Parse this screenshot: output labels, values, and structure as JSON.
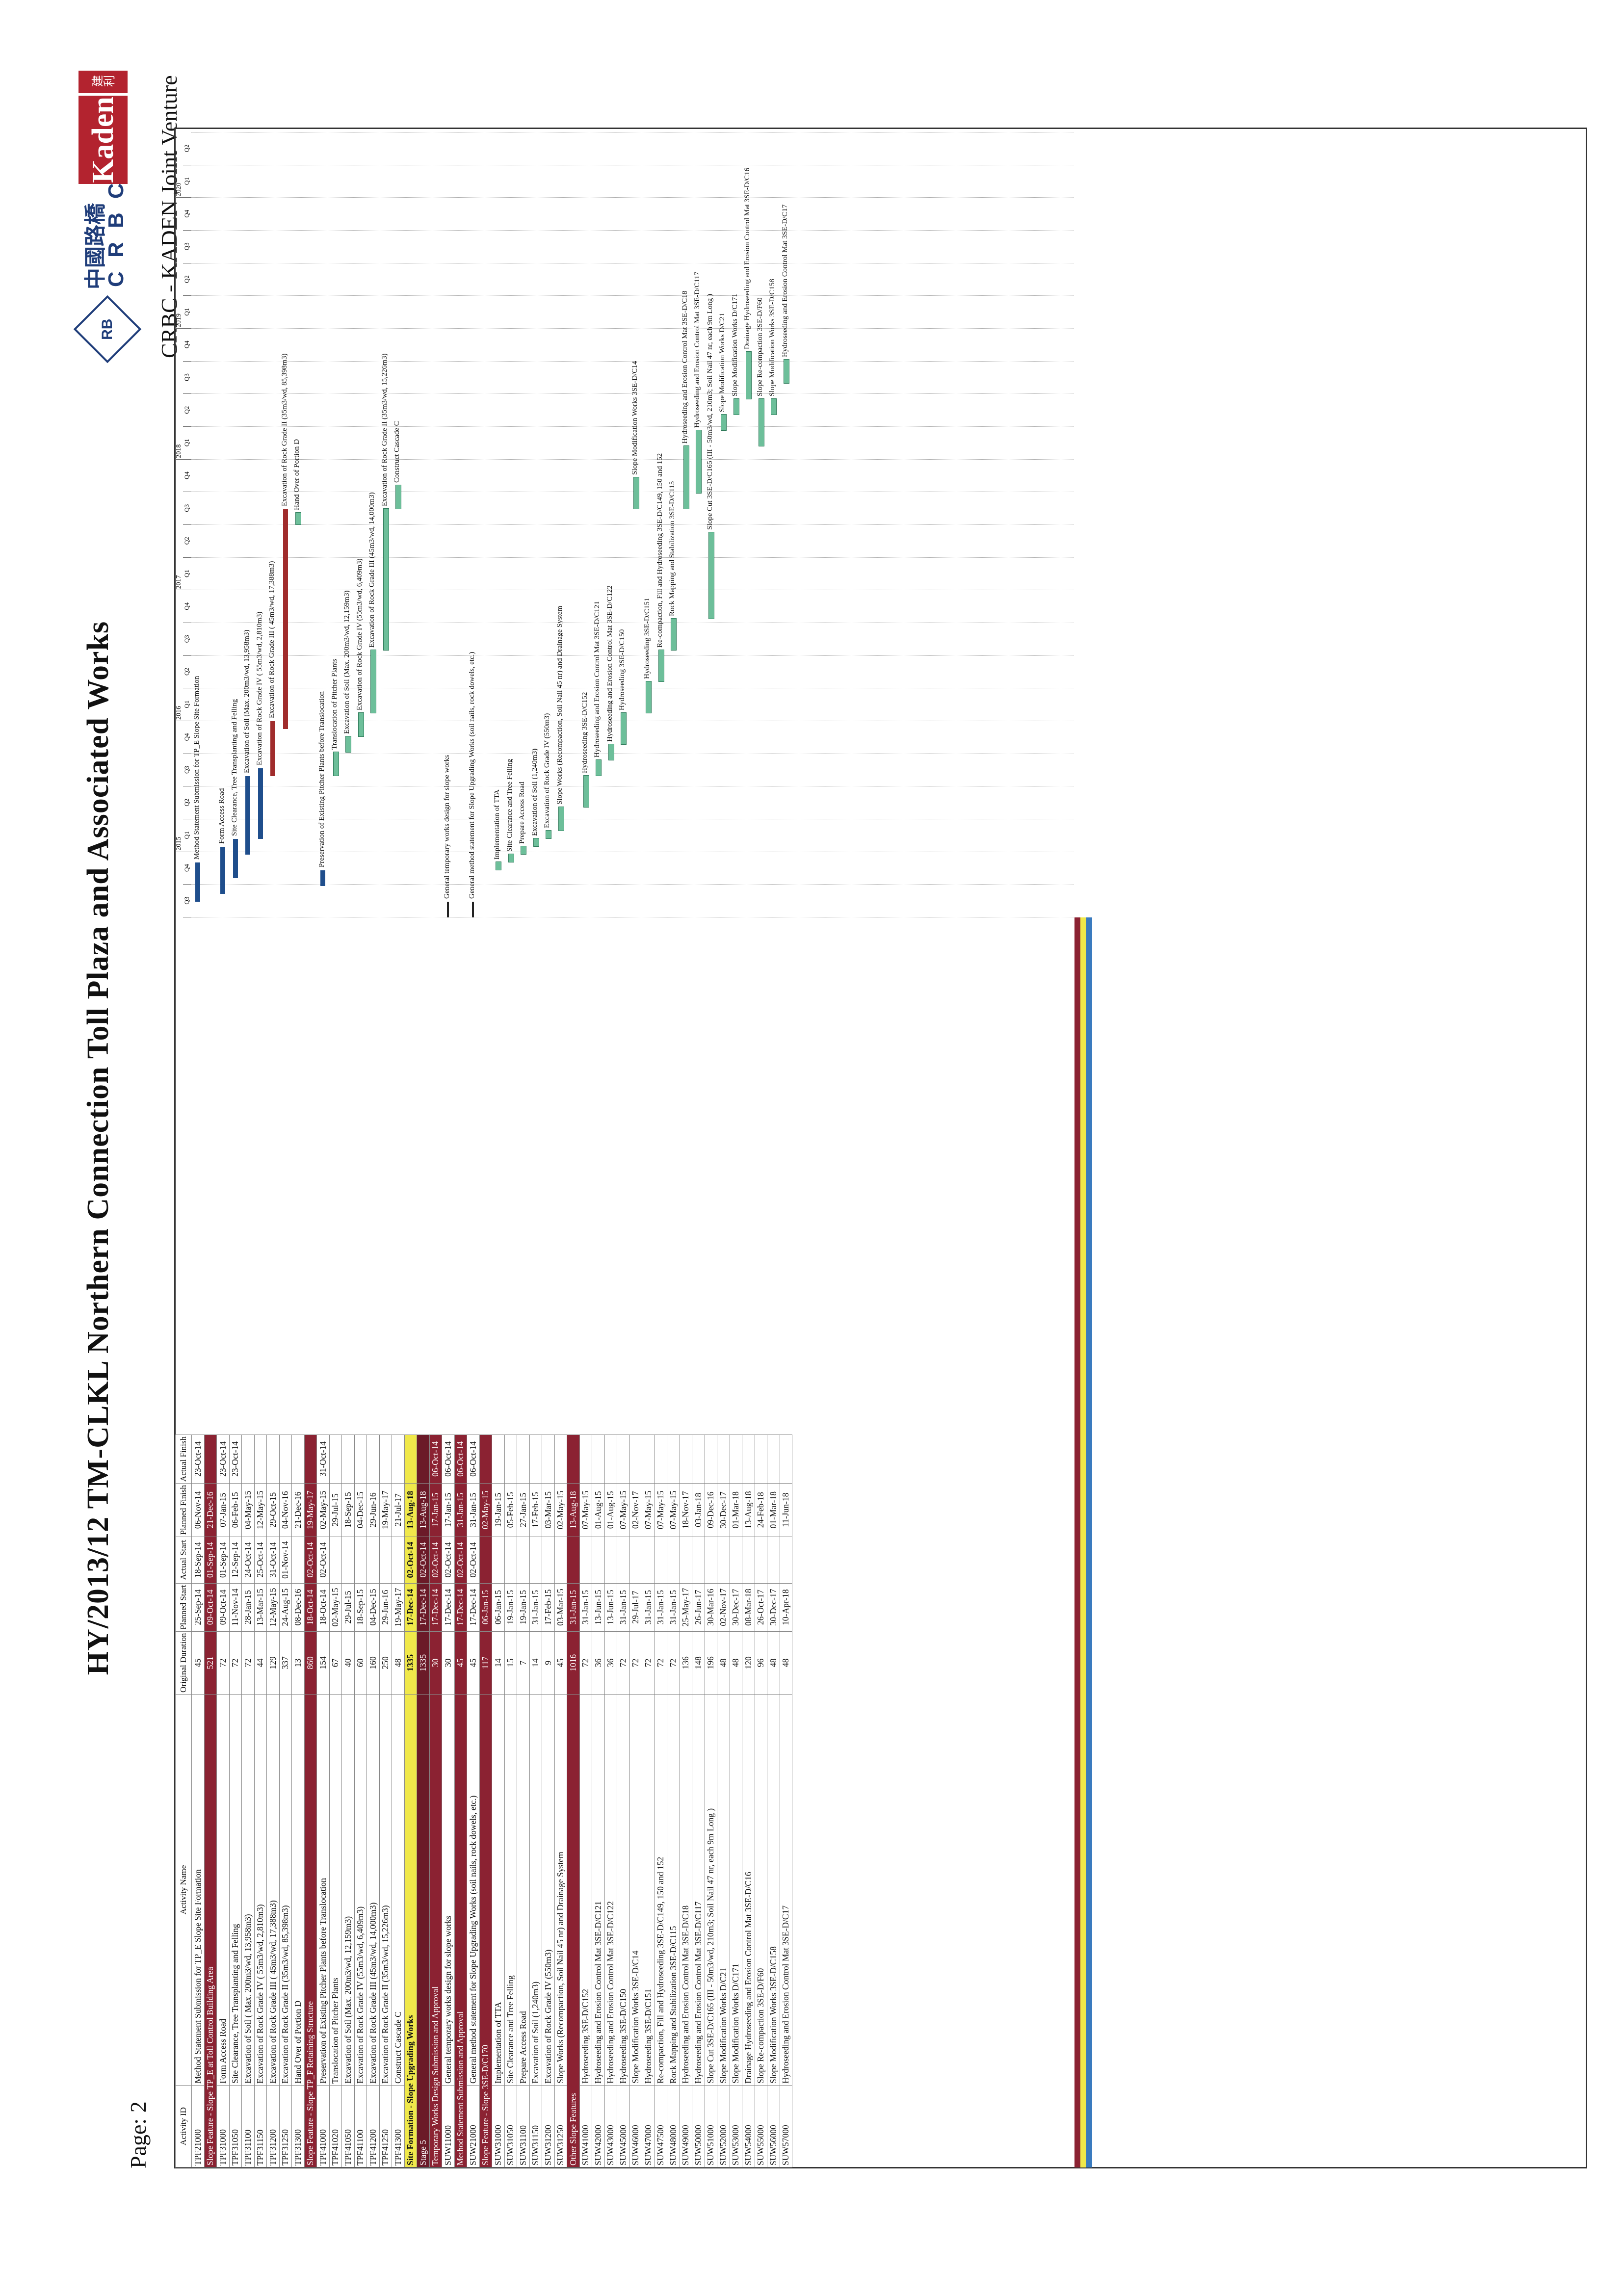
{
  "header": {
    "title": "HY/2013/12 TM-CLKL Northern Connection Toll Plaza and Associated Works",
    "page_label": "Page: 2",
    "company_cn": "中國路橋",
    "company_en": "C R B C",
    "logo_initials": "RB",
    "kaden": "Kaden",
    "kaden_cn": "建利",
    "joint_venture": "CRBC - KADEN Joint Venture"
  },
  "columns": [
    "Activity ID",
    "Activity Name",
    "Original Duration",
    "Planned Start",
    "Actual Start",
    "Planned Finish",
    "Actual Finish"
  ],
  "timeline": {
    "years": [
      "2015",
      "2016",
      "2017",
      "2018",
      "2019",
      "2020"
    ],
    "quarters": [
      "Q3",
      "Q4",
      "Q1",
      "Q2",
      "Q3",
      "Q4",
      "Q1",
      "Q2",
      "Q3",
      "Q4",
      "Q1",
      "Q2",
      "Q3",
      "Q4",
      "Q1",
      "Q2",
      "Q3",
      "Q4",
      "Q1",
      "Q2",
      "Q3",
      "Q4",
      "Q1",
      "Q2"
    ]
  },
  "rows": [
    {
      "type": "row",
      "id": "TPF21000",
      "name": "Method Statement Submission for TP_E Slope Site Formation",
      "dur": "45",
      "ps": "25-Sep-14",
      "as": "18-Sep-14",
      "pf": "06-Nov-14",
      "af": "23-Oct-14",
      "bar": {
        "c": "bl",
        "s": 0.02,
        "e": 0.07,
        "label": "Method Statement Submission for TP_E Slope Site Formation"
      }
    },
    {
      "type": "s1",
      "name": "Slope Feature - Slope TP_E at Toll Control Building Area",
      "dur": "521",
      "ps": "09-Oct-14",
      "as": "01-Sep-14",
      "pf": "21-Dec-16"
    },
    {
      "type": "row",
      "id": "TPF31000",
      "name": "Form Access Road",
      "dur": "72",
      "ps": "09-Oct-14",
      "as": "01-Sep-14",
      "pf": "07-Jan-15",
      "af": "23-Oct-14",
      "bar": {
        "c": "bl",
        "s": 0.03,
        "e": 0.09,
        "label": "Form Access Road"
      }
    },
    {
      "type": "row",
      "id": "TPF31050",
      "name": "Site Clearance, Tree Transplanting and Felling",
      "dur": "72",
      "ps": "11-Nov-14",
      "as": "12-Sep-14",
      "pf": "06-Feb-15",
      "af": "23-Oct-14",
      "bar": {
        "c": "bl",
        "s": 0.05,
        "e": 0.1,
        "label": "Site Clearance, Tree Transplanting and Felling"
      }
    },
    {
      "type": "row",
      "id": "TPF31100",
      "name": "Excavation of Soil ( Max. 200m3/wd, 13,958m3)",
      "dur": "72",
      "ps": "28-Jan-15",
      "as": "24-Oct-14",
      "pf": "04-May-15",
      "bar": {
        "c": "bl",
        "s": 0.08,
        "e": 0.18,
        "label": "Excavation of Soil (Max. 200m3/wd, 13,958m3)"
      }
    },
    {
      "type": "row",
      "id": "TPF31150",
      "name": "Excavation of Rock Grade IV ( 55m3/wd, 2,810m3)",
      "dur": "44",
      "ps": "13-Mar-15",
      "as": "25-Oct-14",
      "pf": "12-May-15",
      "bar": {
        "c": "bl",
        "s": 0.1,
        "e": 0.19,
        "label": "Excavation of Rock Grade IV ( 55m3/wd, 2,810m3)"
      }
    },
    {
      "type": "row",
      "id": "TPF31200",
      "name": "Excavation of Rock Grade III ( 45m3/wd, 17,388m3)",
      "dur": "129",
      "ps": "12-May-15",
      "as": "31-Oct-14",
      "pf": "29-Oct-15",
      "bar": {
        "c": "rd",
        "s": 0.18,
        "e": 0.25,
        "label": "Excavation of Rock Grade III ( 45m3/wd, 17,388m3)"
      }
    },
    {
      "type": "row",
      "id": "TPF31250",
      "name": "Excavation of Rock Grade II (35m3/wd, 85,398m3)",
      "dur": "337",
      "ps": "24-Aug-15",
      "as": "01-Nov-14",
      "pf": "04-Nov-16",
      "bar": {
        "c": "rd",
        "s": 0.24,
        "e": 0.52,
        "label": "Excavation of Rock Grade II (35m3/wd, 85,398m3)"
      }
    },
    {
      "type": "row",
      "id": "TPF31300",
      "name": "Hand Over of Portion D",
      "dur": "13",
      "ps": "08-Dec-16",
      "as": "",
      "pf": "21-Dec-16",
      "bar": {
        "c": "gr",
        "s": 0.5,
        "e": 0.515,
        "label": "Hand Over of Portion D"
      }
    },
    {
      "type": "s1",
      "name": "Slope Feature - Slope TP_F Retaining Structure",
      "dur": "860",
      "ps": "18-Oct-14",
      "as": "02-Oct-14",
      "pf": "19-May-17"
    },
    {
      "type": "row",
      "id": "TPF41000",
      "name": "Preservation of Existing Pitcher Plants before Translocation",
      "dur": "154",
      "ps": "18-Oct-14",
      "as": "02-Oct-14",
      "pf": "02-May-15",
      "af": "31-Oct-14",
      "bar": {
        "c": "bl",
        "s": 0.04,
        "e": 0.06,
        "label": "Preservation of Existing Pitcher Plants before Translocation"
      }
    },
    {
      "type": "row",
      "id": "TPF41020",
      "name": "Translocation of Pitcher Plants",
      "dur": "67",
      "ps": "02-May-15",
      "as": "",
      "pf": "29-Jul-15",
      "bar": {
        "c": "gr",
        "s": 0.18,
        "e": 0.21,
        "label": "Translocation of Pitcher Plants"
      }
    },
    {
      "type": "row",
      "id": "TPF41050",
      "name": "Excavation of Soil (Max. 200m3/wd, 12,159m3)",
      "dur": "40",
      "ps": "29-Jul-15",
      "as": "",
      "pf": "18-Sep-15",
      "bar": {
        "c": "gr",
        "s": 0.21,
        "e": 0.23,
        "label": "Excavation of Soil (Max. 200m3/wd, 12,159m3)"
      }
    },
    {
      "type": "row",
      "id": "TPF41100",
      "name": "Excavation of Rock Grade IV (55m3/wd, 6,409m3)",
      "dur": "60",
      "ps": "18-Sep-15",
      "as": "",
      "pf": "04-Dec-15",
      "bar": {
        "c": "gr",
        "s": 0.23,
        "e": 0.26,
        "label": "Excavation of Rock Grade IV (55m3/wd, 6,409m3)"
      }
    },
    {
      "type": "row",
      "id": "TPF41200",
      "name": "Excavation of Rock Grade III (45m3/wd, 14,000m3)",
      "dur": "160",
      "ps": "04-Dec-15",
      "as": "",
      "pf": "29-Jun-16",
      "bar": {
        "c": "gr",
        "s": 0.26,
        "e": 0.34,
        "label": "Excavation of Rock Grade III (45m3/wd, 14,000m3)"
      }
    },
    {
      "type": "row",
      "id": "TPF41250",
      "name": "Excavation of Rock Grade II (35m3/wd, 15,226m3)",
      "dur": "250",
      "ps": "29-Jun-16",
      "as": "",
      "pf": "19-May-17",
      "bar": {
        "c": "gr",
        "s": 0.34,
        "e": 0.52,
        "label": "Excavation of Rock Grade II (35m3/wd, 15,226m3)"
      }
    },
    {
      "type": "row",
      "id": "TPF41300",
      "name": "Construct Cascade C",
      "dur": "48",
      "ps": "19-May-17",
      "as": "",
      "pf": "21-Jul-17",
      "bar": {
        "c": "gr",
        "s": 0.52,
        "e": 0.55,
        "label": "Construct Cascade C"
      }
    },
    {
      "type": "s3",
      "name": "Site Formation - Slope Upgrading Works",
      "dur": "1335",
      "ps": "17-Dec-14",
      "as": "02-Oct-14",
      "pf": "13-Aug-18"
    },
    {
      "type": "s2",
      "name": "Stage 5",
      "dur": "1335",
      "ps": "17-Dec-14",
      "as": "02-Oct-14",
      "pf": "13-Aug-18"
    },
    {
      "type": "s1",
      "name": "Temporary Works Design Submission and Approval",
      "dur": "30",
      "ps": "17-Dec-14",
      "as": "02-Oct-14",
      "pf": "17-Jan-15",
      "af": "06-Oct-14"
    },
    {
      "type": "row",
      "id": "SUW11000",
      "name": "General temporary works design for slope works",
      "dur": "30",
      "ps": "17-Dec-14",
      "as": "02-Oct-14",
      "pf": "17-Jan-15",
      "af": "06-Oct-14",
      "bar": {
        "c": "bk",
        "s": 0.0,
        "e": 0.02,
        "label": "General temporary works design for slope works"
      }
    },
    {
      "type": "s1",
      "name": "Method Statement Submission and Approval",
      "dur": "45",
      "ps": "17-Dec-14",
      "as": "02-Oct-14",
      "pf": "31-Jan-15",
      "af": "06-Oct-14"
    },
    {
      "type": "row",
      "id": "SUW21000",
      "name": "General method statement for Slope Upgrading Works (soil nails, rock dowels, etc.)",
      "dur": "45",
      "ps": "17-Dec-14",
      "as": "02-Oct-14",
      "pf": "31-Jan-15",
      "af": "06-Oct-14",
      "bar": {
        "c": "bk",
        "s": 0.0,
        "e": 0.02,
        "label": "General method statement for Slope Upgrading Works (soil nails, rock dowels, etc.)"
      }
    },
    {
      "type": "s1",
      "name": "Slope Feature - Slope 3SE-D/C170",
      "dur": "117",
      "ps": "06-Jan-15",
      "as": "",
      "pf": "02-May-15"
    },
    {
      "type": "row",
      "id": "SUW31000",
      "name": "Implementation of TTA",
      "dur": "14",
      "ps": "06-Jan-15",
      "as": "",
      "pf": "19-Jan-15",
      "bar": {
        "c": "gr",
        "s": 0.06,
        "e": 0.07,
        "label": "Implementation of TTA"
      }
    },
    {
      "type": "row",
      "id": "SUW31050",
      "name": "Site Clearance and Tree Felling",
      "dur": "15",
      "ps": "19-Jan-15",
      "as": "",
      "pf": "05-Feb-15",
      "bar": {
        "c": "gr",
        "s": 0.07,
        "e": 0.08,
        "label": "Site Clearance and Tree Felling"
      }
    },
    {
      "type": "row",
      "id": "SUW31100",
      "name": "Prepare Access Road",
      "dur": "7",
      "ps": "19-Jan-15",
      "as": "",
      "pf": "27-Jan-15",
      "bar": {
        "c": "gr",
        "s": 0.08,
        "e": 0.09,
        "label": "Prepare Access Road"
      }
    },
    {
      "type": "row",
      "id": "SUW31150",
      "name": "Excavation of Soil (1,240m3)",
      "dur": "14",
      "ps": "31-Jan-15",
      "as": "",
      "pf": "17-Feb-15",
      "bar": {
        "c": "gr",
        "s": 0.09,
        "e": 0.1,
        "label": "Excavation of Soil (1,240m3)"
      }
    },
    {
      "type": "row",
      "id": "SUW31200",
      "name": "Excavation of Rock Grade IV (550m3)",
      "dur": "9",
      "ps": "17-Feb-15",
      "as": "",
      "pf": "03-Mar-15",
      "bar": {
        "c": "gr",
        "s": 0.1,
        "e": 0.11,
        "label": "Excavation of Rock Grade IV (550m3)"
      }
    },
    {
      "type": "row",
      "id": "SUW31250",
      "name": "Slope Works (Recompaction, Soil Nail 45 nr) and Drainage System",
      "dur": "45",
      "ps": "03-Mar-15",
      "as": "",
      "pf": "02-May-15",
      "bar": {
        "c": "gr",
        "s": 0.11,
        "e": 0.14,
        "label": "Slope Works (Recompaction, Soil Nail 45 nr) and Drainage System"
      }
    },
    {
      "type": "s1",
      "name": "Other Slope Features",
      "dur": "1016",
      "ps": "31-Jan-15",
      "as": "",
      "pf": "13-Aug-18"
    },
    {
      "type": "row",
      "id": "SUW41000",
      "name": "Hydroseeding 3SE-D/C152",
      "dur": "72",
      "ps": "31-Jan-15",
      "as": "",
      "pf": "07-May-15",
      "bar": {
        "c": "gr",
        "s": 0.14,
        "e": 0.18,
        "label": "Hydroseeding 3SE-D/C152"
      }
    },
    {
      "type": "row",
      "id": "SUW42000",
      "name": "Hydroseeding and Erosion Control Mat 3SE-D/C121",
      "dur": "36",
      "ps": "13-Jun-15",
      "as": "",
      "pf": "01-Aug-15",
      "bar": {
        "c": "gr",
        "s": 0.18,
        "e": 0.2,
        "label": "Hydroseeding and Erosion Control Mat 3SE-D/C121"
      }
    },
    {
      "type": "row",
      "id": "SUW43000",
      "name": "Hydroseeding and Erosion Control Mat 3SE-D/C122",
      "dur": "36",
      "ps": "13-Jun-15",
      "as": "",
      "pf": "01-Aug-15",
      "bar": {
        "c": "gr",
        "s": 0.2,
        "e": 0.22,
        "label": "Hydroseeding and Erosion Control Mat 3SE-D/C122"
      }
    },
    {
      "type": "row",
      "id": "SUW45000",
      "name": "Hydroseeding 3SE-D/C150",
      "dur": "72",
      "ps": "31-Jan-15",
      "as": "",
      "pf": "07-May-15",
      "bar": {
        "c": "gr",
        "s": 0.22,
        "e": 0.26,
        "label": "Hydroseeding 3SE-D/C150"
      }
    },
    {
      "type": "row",
      "id": "SUW46000",
      "name": "Slope Modification Works 3SE-D/C14",
      "dur": "72",
      "ps": "29-Jul-17",
      "as": "",
      "pf": "02-Nov-17",
      "bar": {
        "c": "gr",
        "s": 0.52,
        "e": 0.56,
        "label": "Slope Modification Works 3SE-D/C14"
      }
    },
    {
      "type": "row",
      "id": "SUW47000",
      "name": "Hydroseeding 3SE-D/C151",
      "dur": "72",
      "ps": "31-Jan-15",
      "as": "",
      "pf": "07-May-15",
      "bar": {
        "c": "gr",
        "s": 0.26,
        "e": 0.3,
        "label": "Hydroseeding 3SE-D/C151"
      }
    },
    {
      "type": "row",
      "id": "SUW47500",
      "name": "Re-compaction, Fill and Hydroseeding 3SE-D/C149, 150 and 152",
      "dur": "72",
      "ps": "31-Jan-15",
      "as": "",
      "pf": "07-May-15",
      "bar": {
        "c": "gr",
        "s": 0.3,
        "e": 0.34,
        "label": "Re-compaction, Fill and Hydroseeding 3SE-D/C149, 150 and 152"
      }
    },
    {
      "type": "row",
      "id": "SUW48000",
      "name": "Rock Mapping and Stabilization 3SE-D/C115",
      "dur": "72",
      "ps": "31-Jan-15",
      "as": "",
      "pf": "07-May-15",
      "bar": {
        "c": "gr",
        "s": 0.34,
        "e": 0.38,
        "label": "Rock Mapping and Stabilization 3SE-D/C115"
      }
    },
    {
      "type": "row",
      "id": "SUW49000",
      "name": "Hydroseeding and Erosion Control Mat 3SE-D/C18",
      "dur": "136",
      "ps": "25-May-17",
      "as": "",
      "pf": "18-Nov-17",
      "bar": {
        "c": "gr",
        "s": 0.52,
        "e": 0.6,
        "label": "Hydroseeding and Erosion Control Mat 3SE-D/C18"
      }
    },
    {
      "type": "row",
      "id": "SUW50000",
      "name": "Hydroseeding and Erosion Control Mat 3SE-D/C117",
      "dur": "148",
      "ps": "26-Jun-17",
      "as": "",
      "pf": "03-Jan-18",
      "bar": {
        "c": "gr",
        "s": 0.54,
        "e": 0.62,
        "label": "Hydroseeding and Erosion Control Mat 3SE-D/C117"
      }
    },
    {
      "type": "row",
      "id": "SUW51000",
      "name": "Slope Cut 3SE-D/C165 (III - 50m3/wd, 210m3; Soil Nail 47 nr, each 9m Long )",
      "dur": "196",
      "ps": "30-Mar-16",
      "as": "",
      "pf": "09-Dec-16",
      "bar": {
        "c": "gr",
        "s": 0.38,
        "e": 0.49,
        "label": "Slope Cut 3SE-D/C165 (III - 50m3/wd, 210m3; Soil Nail 47 nr, each 9m Long )"
      }
    },
    {
      "type": "row",
      "id": "SUW52000",
      "name": "Slope Modification Works D/C21",
      "dur": "48",
      "ps": "02-Nov-17",
      "as": "",
      "pf": "30-Dec-17",
      "bar": {
        "c": "gr",
        "s": 0.62,
        "e": 0.64,
        "label": "Slope Modification Works D/C21"
      }
    },
    {
      "type": "row",
      "id": "SUW53000",
      "name": "Slope Modification Works D/C171",
      "dur": "48",
      "ps": "30-Dec-17",
      "as": "",
      "pf": "01-Mar-18",
      "bar": {
        "c": "gr",
        "s": 0.64,
        "e": 0.66,
        "label": "Slope Modification Works D/C171"
      }
    },
    {
      "type": "row",
      "id": "SUW54000",
      "name": "Drainage Hydroseeding and Erosion Control Mat 3SE-D/C16",
      "dur": "120",
      "ps": "08-Mar-18",
      "as": "",
      "pf": "13-Aug-18",
      "bar": {
        "c": "gr",
        "s": 0.66,
        "e": 0.72,
        "label": "Drainage Hydroseeding and Erosion Control Mat 3SE-D/C16"
      }
    },
    {
      "type": "row",
      "id": "SUW55000",
      "name": "Slope Re-compaction 3SE-D/F60",
      "dur": "96",
      "ps": "26-Oct-17",
      "as": "",
      "pf": "24-Feb-18",
      "bar": {
        "c": "gr",
        "s": 0.6,
        "e": 0.66,
        "label": "Slope Re-compaction 3SE-D/F60"
      }
    },
    {
      "type": "row",
      "id": "SUW56000",
      "name": "Slope Modification Works 3SE-D/C158",
      "dur": "48",
      "ps": "30-Dec-17",
      "as": "",
      "pf": "01-Mar-18",
      "bar": {
        "c": "gr",
        "s": 0.64,
        "e": 0.66,
        "label": "Slope Modification Works 3SE-D/C158"
      }
    },
    {
      "type": "row",
      "id": "SUW57000",
      "name": "Hydroseeding and Erosion Control Mat 3SE-D/C17",
      "dur": "48",
      "ps": "10-Apr-18",
      "as": "",
      "pf": "11-Jun-18",
      "bar": {
        "c": "gr",
        "s": 0.68,
        "e": 0.71,
        "label": "Hydroseeding and Erosion Control Mat 3SE-D/C17"
      }
    }
  ]
}
